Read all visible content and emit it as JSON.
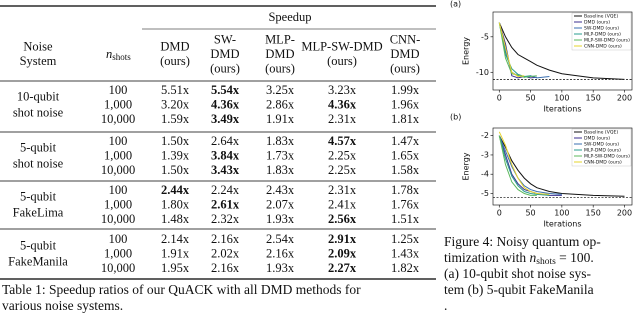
{
  "table": {
    "spanner": "Speedup",
    "columns": [
      [
        "Noise",
        "System"
      ],
      {
        "symbol": "n",
        "subscript": "shots"
      },
      [
        "DMD",
        "(ours)"
      ],
      [
        "SW-",
        "DMD",
        "(ours)"
      ],
      [
        "MLP-",
        "DMD",
        "(ours)"
      ],
      [
        "MLP-SW-DMD",
        "(ours)"
      ],
      [
        "CNN-",
        "DMD",
        "(ours)"
      ]
    ],
    "groups": [
      {
        "system": [
          "10-qubit",
          "shot noise"
        ],
        "rows": [
          {
            "shots": "100",
            "values": [
              "5.51x",
              "5.54x",
              "3.25x",
              "3.23x",
              "1.99x"
            ],
            "bold": [
              1
            ]
          },
          {
            "shots": "1,000",
            "values": [
              "3.20x",
              "4.36x",
              "2.86x",
              "4.36x",
              "1.96x"
            ],
            "bold": [
              1,
              3
            ]
          },
          {
            "shots": "10,000",
            "values": [
              "1.59x",
              "3.49x",
              "1.91x",
              "2.31x",
              "1.81x"
            ],
            "bold": [
              1
            ]
          }
        ]
      },
      {
        "system": [
          "5-qubit",
          "shot noise"
        ],
        "rows": [
          {
            "shots": "100",
            "values": [
              "1.50x",
              "2.64x",
              "1.83x",
              "4.57x",
              "1.47x"
            ],
            "bold": [
              3
            ]
          },
          {
            "shots": "1,000",
            "values": [
              "1.39x",
              "3.84x",
              "1.73x",
              "2.25x",
              "1.65x"
            ],
            "bold": [
              1
            ]
          },
          {
            "shots": "10,000",
            "values": [
              "1.50x",
              "3.43x",
              "1.83x",
              "2.25x",
              "1.58x"
            ],
            "bold": [
              1
            ]
          }
        ]
      },
      {
        "system": [
          "5-qubit",
          "FakeLima"
        ],
        "rows": [
          {
            "shots": "100",
            "values": [
              "2.44x",
              "2.24x",
              "2.43x",
              "2.31x",
              "1.78x"
            ],
            "bold": [
              0
            ]
          },
          {
            "shots": "1,000",
            "values": [
              "1.80x",
              "2.61x",
              "2.07x",
              "2.41x",
              "1.76x"
            ],
            "bold": [
              1
            ]
          },
          {
            "shots": "10,000",
            "values": [
              "1.48x",
              "2.32x",
              "1.93x",
              "2.56x",
              "1.51x"
            ],
            "bold": [
              3
            ]
          }
        ]
      },
      {
        "system": [
          "5-qubit",
          "FakeManila"
        ],
        "rows": [
          {
            "shots": "100",
            "values": [
              "2.14x",
              "2.16x",
              "2.54x",
              "2.91x",
              "1.25x"
            ],
            "bold": [
              3
            ]
          },
          {
            "shots": "1,000",
            "values": [
              "1.91x",
              "2.02x",
              "2.16x",
              "2.09x",
              "1.43x"
            ],
            "bold": [
              3
            ]
          },
          {
            "shots": "10,000",
            "values": [
              "1.95x",
              "2.16x",
              "1.93x",
              "2.27x",
              "1.82x"
            ],
            "bold": [
              3
            ]
          }
        ]
      }
    ]
  },
  "table_caption": [
    "Table 1: Speedup ratios of our QuACK with all DMD methods for",
    "various noise systems."
  ],
  "chart_data": [
    {
      "type": "line",
      "panel": "(a)",
      "xlabel": "Iterations",
      "ylabel": "Energy",
      "xlim": [
        -10,
        212
      ],
      "ylim": [
        -12.5,
        -1.5
      ],
      "xticks": [
        0,
        50,
        100,
        150,
        200
      ],
      "yticks": [
        -5,
        -10
      ],
      "reference": -11,
      "legend": "upper right",
      "x": [
        0,
        10,
        20,
        30,
        40,
        50,
        60,
        80,
        100,
        150,
        200
      ],
      "series": [
        {
          "name": "Baseline (VQE)",
          "color": "#111111",
          "values": [
            -3,
            -5,
            -6.5,
            -7.5,
            -8,
            -8.5,
            -9,
            -9.7,
            -10.2,
            -10.8,
            -11
          ]
        },
        {
          "name": "DMD (ours)",
          "color": "#3b2f8f",
          "values": [
            -3,
            -6,
            -10.5,
            -10.8,
            -10.6,
            -10.8,
            -10.7,
            null,
            null,
            null,
            null
          ]
        },
        {
          "name": "SW-DMD (ours)",
          "color": "#3a6fb0",
          "values": [
            -3,
            -7,
            -10,
            -10.5,
            -10.7,
            -10.5,
            -10.8,
            -10.6,
            null,
            null,
            null
          ]
        },
        {
          "name": "MLP-DMD (ours)",
          "color": "#2a9d8f",
          "values": [
            -3,
            -7.5,
            -9.5,
            -10.3,
            -10.6,
            -10.5,
            null,
            null,
            null,
            null,
            null
          ]
        },
        {
          "name": "MLP-SW-DMD (ours)",
          "color": "#5cb85c",
          "values": [
            -3,
            -8,
            -10.2,
            -10.4,
            -10.7,
            -10.6,
            -10.5,
            null,
            null,
            null,
            null
          ]
        },
        {
          "name": "CNN-DMD (ours)",
          "color": "#e6d42e",
          "values": [
            -3,
            -6.5,
            -10,
            -10.6,
            -10.5,
            null,
            null,
            null,
            null,
            null,
            null
          ]
        }
      ]
    },
    {
      "type": "line",
      "panel": "(b)",
      "xlabel": "Iterations",
      "ylabel": "Energy",
      "xlim": [
        -10,
        212
      ],
      "ylim": [
        -5.6,
        -1.6
      ],
      "xticks": [
        0,
        50,
        100,
        150,
        200
      ],
      "yticks": [
        -2,
        -3,
        -4,
        -5
      ],
      "reference": -5.2,
      "legend": "upper right",
      "x": [
        0,
        10,
        20,
        30,
        40,
        50,
        60,
        80,
        100,
        150,
        200
      ],
      "series": [
        {
          "name": "Baseline (VQE)",
          "color": "#111111",
          "values": [
            -2,
            -2.6,
            -3.3,
            -3.8,
            -4.2,
            -4.5,
            -4.7,
            -4.9,
            -5,
            -5.1,
            -5.15
          ]
        },
        {
          "name": "DMD (ours)",
          "color": "#3b2f8f",
          "values": [
            -2,
            -3,
            -4,
            -4.5,
            -4.8,
            -4.9,
            -5,
            -5.1,
            -5.1,
            null,
            null
          ]
        },
        {
          "name": "SW-DMD (ours)",
          "color": "#3a6fb0",
          "values": [
            -2,
            -2.8,
            -3.6,
            -4.2,
            -4.6,
            -4.8,
            -4.9,
            -5,
            -5.05,
            null,
            null
          ]
        },
        {
          "name": "MLP-DMD (ours)",
          "color": "#2a9d8f",
          "values": [
            -2,
            -3.2,
            -4.1,
            -4.6,
            -4.9,
            -5,
            -5.05,
            -5.1,
            null,
            null,
            null
          ]
        },
        {
          "name": "MLP-SW-DMD (ours)",
          "color": "#5cb85c",
          "values": [
            -2,
            -3.5,
            -4.4,
            -4.8,
            -5,
            -5.1,
            -5.1,
            null,
            null,
            null,
            null
          ]
        },
        {
          "name": "CNN-DMD (ours)",
          "color": "#e6d42e",
          "values": [
            -1.8,
            -2.5,
            -3.5,
            -4.2,
            -4.7,
            -4.9,
            -5,
            -5.05,
            null,
            null,
            null
          ]
        }
      ]
    }
  ],
  "figure_caption": [
    [
      {
        "text": "Figure 4: Noisy quantum op-"
      }
    ],
    [
      {
        "text": "timization with "
      },
      {
        "text": "n",
        "style": "italic"
      },
      {
        "text": "shots",
        "style": "sub"
      },
      {
        "text": " = 100."
      }
    ],
    [
      {
        "text": "(a) 10-qubit shot noise sys-"
      }
    ],
    [
      {
        "text": "tem (b) 5-qubit FakeManila"
      }
    ],
    [
      {
        "text": "."
      }
    ]
  ]
}
